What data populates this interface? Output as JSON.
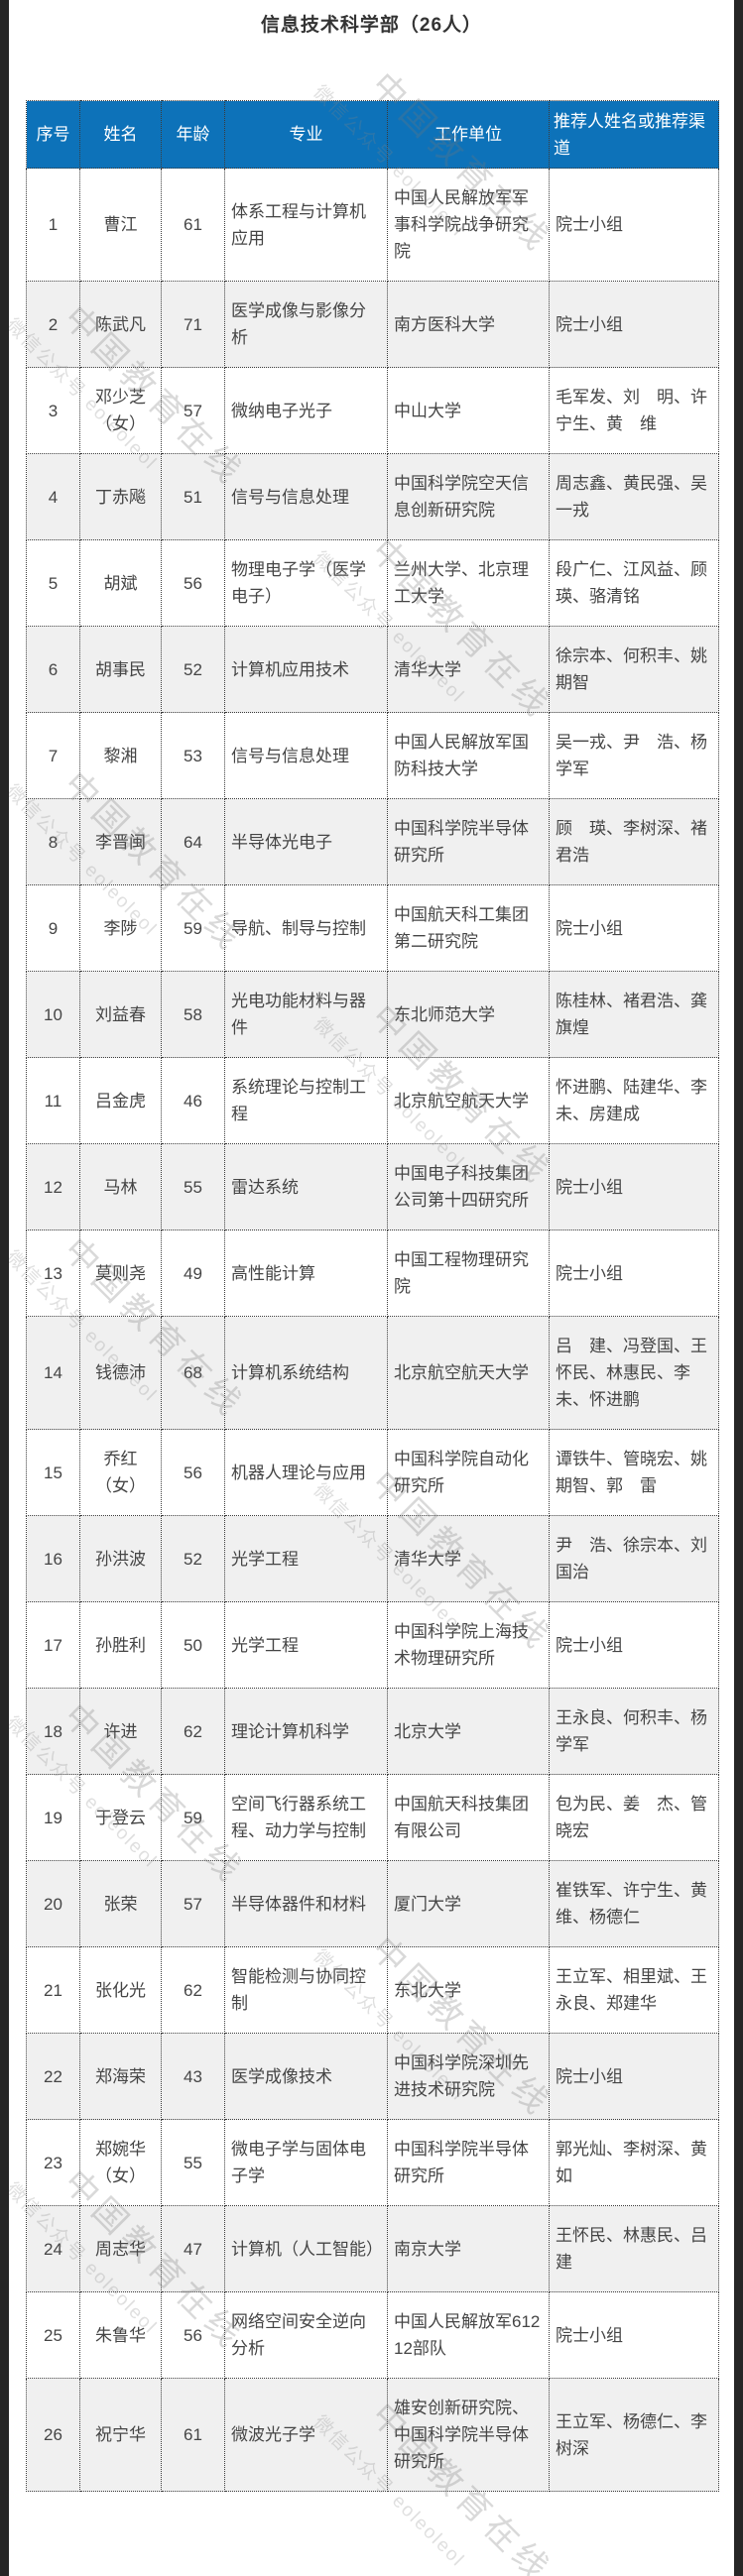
{
  "title": "信息技术科学部（26人）",
  "watermark": {
    "line1": "中国教育在线",
    "line2": "微信公众号 eoleoleol"
  },
  "colors": {
    "header_bg": "#0d72b9",
    "alt_row_bg": "#f0f0f0",
    "edge_strip": "#262626",
    "border": "#3c3c3c",
    "body_text": "#454545",
    "header_text": "#ffffff"
  },
  "table": {
    "columns": [
      "序号",
      "姓名",
      "年龄",
      "专业",
      "工作单位",
      "推荐人姓名或推荐渠道"
    ],
    "rows": [
      {
        "no": "1",
        "name": "曹江",
        "age": "61",
        "major": "体系工程与计算机应用",
        "unit": "中国人民解放军军事科学院战争研究院",
        "recommender": "院士小组"
      },
      {
        "no": "2",
        "name": "陈武凡",
        "age": "71",
        "major": "医学成像与影像分析",
        "unit": "南方医科大学",
        "recommender": "院士小组"
      },
      {
        "no": "3",
        "name": "邓少芝（女）",
        "age": "57",
        "major": "微纳电子光子",
        "unit": "中山大学",
        "recommender": "毛军发、刘　明、许宁生、黄　维"
      },
      {
        "no": "4",
        "name": "丁赤飚",
        "age": "51",
        "major": "信号与信息处理",
        "unit": "中国科学院空天信息创新研究院",
        "recommender": "周志鑫、黄民强、吴一戎"
      },
      {
        "no": "5",
        "name": "胡斌",
        "age": "56",
        "major": "物理电子学（医学电子）",
        "unit": "兰州大学、北京理工大学",
        "recommender": "段广仁、江风益、顾　瑛、骆清铭"
      },
      {
        "no": "6",
        "name": "胡事民",
        "age": "52",
        "major": "计算机应用技术",
        "unit": "清华大学",
        "recommender": "徐宗本、何积丰、姚期智"
      },
      {
        "no": "7",
        "name": "黎湘",
        "age": "53",
        "major": "信号与信息处理",
        "unit": "中国人民解放军国防科技大学",
        "recommender": "吴一戎、尹　浩、杨学军"
      },
      {
        "no": "8",
        "name": "李晋闽",
        "age": "64",
        "major": "半导体光电子",
        "unit": "中国科学院半导体研究所",
        "recommender": "顾　瑛、李树深、褚君浩"
      },
      {
        "no": "9",
        "name": "李陟",
        "age": "59",
        "major": "导航、制导与控制",
        "unit": "中国航天科工集团第二研究院",
        "recommender": "院士小组"
      },
      {
        "no": "10",
        "name": "刘益春",
        "age": "58",
        "major": "光电功能材料与器件",
        "unit": "东北师范大学",
        "recommender": "陈桂林、褚君浩、龚旗煌"
      },
      {
        "no": "11",
        "name": "吕金虎",
        "age": "46",
        "major": "系统理论与控制工程",
        "unit": "北京航空航天大学",
        "recommender": "怀进鹏、陆建华、李　未、房建成"
      },
      {
        "no": "12",
        "name": "马林",
        "age": "55",
        "major": "雷达系统",
        "unit": "中国电子科技集团公司第十四研究所",
        "recommender": "院士小组"
      },
      {
        "no": "13",
        "name": "莫则尧",
        "age": "49",
        "major": "高性能计算",
        "unit": "中国工程物理研究院",
        "recommender": "院士小组"
      },
      {
        "no": "14",
        "name": "钱德沛",
        "age": "68",
        "major": "计算机系统结构",
        "unit": "北京航空航天大学",
        "recommender": "吕　建、冯登国、王怀民、林惠民、李　未、怀进鹏"
      },
      {
        "no": "15",
        "name": "乔红（女）",
        "age": "56",
        "major": "机器人理论与应用",
        "unit": "中国科学院自动化研究所",
        "recommender": "谭铁牛、管晓宏、姚期智、郭　雷"
      },
      {
        "no": "16",
        "name": "孙洪波",
        "age": "52",
        "major": "光学工程",
        "unit": "清华大学",
        "recommender": "尹　浩、徐宗本、刘国治"
      },
      {
        "no": "17",
        "name": "孙胜利",
        "age": "50",
        "major": "光学工程",
        "unit": "中国科学院上海技术物理研究所",
        "recommender": "院士小组"
      },
      {
        "no": "18",
        "name": "许进",
        "age": "62",
        "major": "理论计算机科学",
        "unit": "北京大学",
        "recommender": "王永良、何积丰、杨学军"
      },
      {
        "no": "19",
        "name": "于登云",
        "age": "59",
        "major": "空间飞行器系统工程、动力学与控制",
        "unit": "中国航天科技集团有限公司",
        "recommender": "包为民、姜　杰、管晓宏"
      },
      {
        "no": "20",
        "name": "张荣",
        "age": "57",
        "major": "半导体器件和材料",
        "unit": "厦门大学",
        "recommender": "崔铁军、许宁生、黄　维、杨德仁"
      },
      {
        "no": "21",
        "name": "张化光",
        "age": "62",
        "major": "智能检测与协同控制",
        "unit": "东北大学",
        "recommender": "王立军、相里斌、王永良、郑建华"
      },
      {
        "no": "22",
        "name": "郑海荣",
        "age": "43",
        "major": "医学成像技术",
        "unit": "中国科学院深圳先进技术研究院",
        "recommender": "院士小组"
      },
      {
        "no": "23",
        "name": "郑婉华（女）",
        "age": "55",
        "major": "微电子学与固体电子学",
        "unit": "中国科学院半导体研究所",
        "recommender": "郭光灿、李树深、黄　如"
      },
      {
        "no": "24",
        "name": "周志华",
        "age": "47",
        "major": "计算机（人工智能）",
        "unit": "南京大学",
        "recommender": "王怀民、林惠民、吕　建"
      },
      {
        "no": "25",
        "name": "朱鲁华",
        "age": "56",
        "major": "网络空间安全逆向分析",
        "unit": "中国人民解放军61212部队",
        "recommender": "院士小组"
      },
      {
        "no": "26",
        "name": "祝宁华",
        "age": "61",
        "major": "微波光子学",
        "unit": "雄安创新研究院、中国科学院半导体研究所",
        "recommender": "王立军、杨德仁、李树深"
      }
    ]
  }
}
